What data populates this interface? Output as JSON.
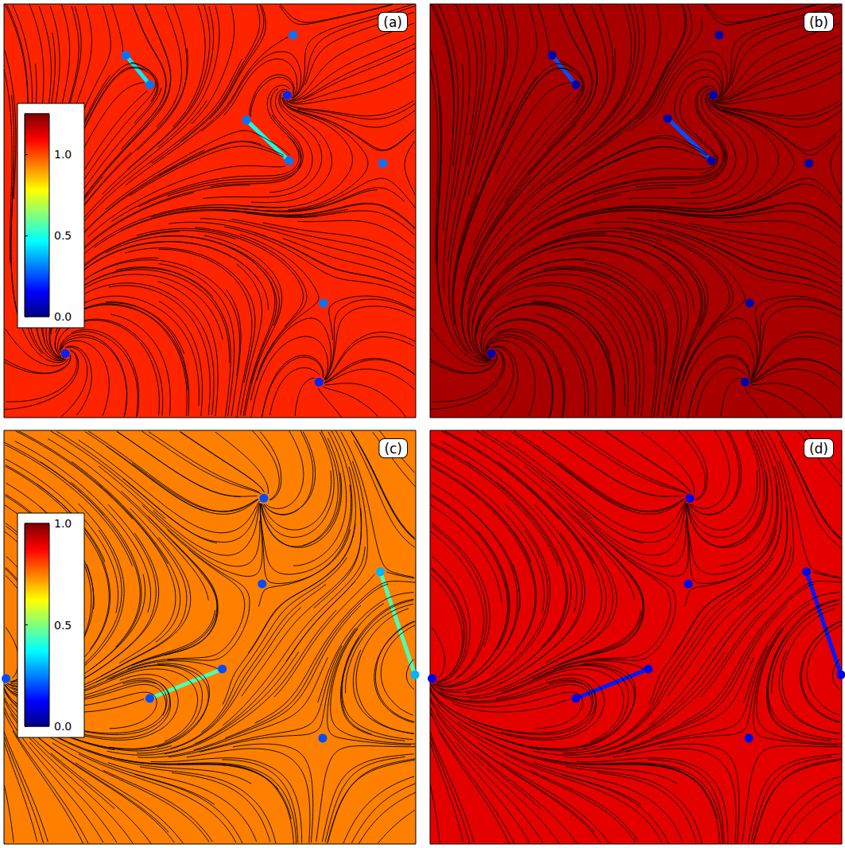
{
  "chart_data": {
    "type": "field",
    "tick_labels": false,
    "xlim": [
      0,
      100
    ],
    "ylim": [
      0,
      100
    ],
    "rows": [
      {
        "colorbar": {
          "range": [
            0,
            1.25
          ],
          "ticks": [
            {
              "value": 0,
              "label": "0.0"
            },
            {
              "value": 0.5,
              "label": "0.5"
            },
            {
              "value": 1,
              "label": "1.0"
            }
          ]
        },
        "panels": [
          {
            "label": "(a)",
            "marker": "none",
            "background": 1.05,
            "walls": [
              {
                "from": [
                  29.6,
                  87.6
                ],
                "to": [
                  35.4,
                  80.5
                ],
                "value": 0.45
              },
              {
                "from": [
                  58.9,
                  71.9
                ],
                "to": [
                  69.2,
                  62.1
                ],
                "value": 0.5
              }
            ],
            "defects": [
              {
                "x": 29.6,
                "y": 87.6,
                "charge": -0.5,
                "value": 0.3
              },
              {
                "x": 35.4,
                "y": 80.5,
                "charge": 0.5,
                "value": 0.3
              },
              {
                "x": 58.9,
                "y": 71.9,
                "charge": -0.5,
                "value": 0.3
              },
              {
                "x": 69.2,
                "y": 62.1,
                "charge": 0.5,
                "value": 0.3
              },
              {
                "x": 70.2,
                "y": 92.5,
                "charge": -1,
                "value": 0.3
              },
              {
                "x": 68.8,
                "y": 78.0,
                "charge": 1,
                "value": 0.2
              },
              {
                "x": 92.0,
                "y": 61.5,
                "charge": -1,
                "value": 0.3
              },
              {
                "x": 77.6,
                "y": 27.7,
                "charge": -1,
                "value": 0.3
              },
              {
                "x": 14.9,
                "y": 15.5,
                "charge": 1,
                "value": 0.2
              },
              {
                "x": 76.5,
                "y": 8.6,
                "charge": 1,
                "value": 0.2
              }
            ]
          },
          {
            "label": "(b)",
            "marker": "arrow",
            "background": 1.2,
            "walls": [
              {
                "from": [
                  29.6,
                  87.6
                ],
                "to": [
                  35.4,
                  80.5
                ],
                "value": 0.25
              },
              {
                "from": [
                  57.7,
                  72.3
                ],
                "to": [
                  68.3,
                  62.1
                ],
                "value": 0.25
              }
            ],
            "defects": [
              {
                "x": 29.6,
                "y": 87.6,
                "charge": -0.5,
                "value": 0.05
              },
              {
                "x": 35.4,
                "y": 80.5,
                "charge": 0.5,
                "value": 0.05
              },
              {
                "x": 57.7,
                "y": 72.3,
                "charge": -0.5,
                "value": 0.05
              },
              {
                "x": 68.3,
                "y": 62.1,
                "charge": 0.5,
                "value": 0.05
              },
              {
                "x": 70.2,
                "y": 92.5,
                "charge": -1,
                "value": 0.05
              },
              {
                "x": 68.8,
                "y": 78.0,
                "charge": 1,
                "value": 0.05
              },
              {
                "x": 92.0,
                "y": 61.5,
                "charge": -1,
                "value": 0.05
              },
              {
                "x": 77.6,
                "y": 27.7,
                "charge": -1,
                "value": 0.05
              },
              {
                "x": 14.9,
                "y": 15.5,
                "charge": 1,
                "value": 0.05
              },
              {
                "x": 76.5,
                "y": 8.6,
                "charge": 1,
                "value": 0.05
              }
            ]
          }
        ]
      },
      {
        "colorbar": {
          "range": [
            0,
            1
          ],
          "ticks": [
            {
              "value": 0,
              "label": "0.0"
            },
            {
              "value": 0.5,
              "label": "0.5"
            },
            {
              "value": 1,
              "label": "1.0"
            }
          ]
        },
        "panels": [
          {
            "label": "(c)",
            "marker": "none",
            "background": 0.75,
            "walls": [
              {
                "from": [
                  91.4,
                  65.8
                ],
                "to": [
                  99.8,
                  40.9
                ],
                "value": 0.45
              },
              {
                "from": [
                  35.4,
                  35.2
                ],
                "to": [
                  53.0,
                  42.3
                ],
                "value": 0.45
              }
            ],
            "defects": [
              {
                "x": 63.1,
                "y": 83.6,
                "charge": 1,
                "value": 0.2
              },
              {
                "x": 62.7,
                "y": 62.9,
                "charge": -1,
                "value": 0.2
              },
              {
                "x": 91.4,
                "y": 65.8,
                "charge": -0.5,
                "value": 0.3
              },
              {
                "x": 99.8,
                "y": 40.9,
                "charge": 0.5,
                "value": 0.3
              },
              {
                "x": 35.4,
                "y": 35.2,
                "charge": 0.5,
                "value": 0.2
              },
              {
                "x": 53.0,
                "y": 42.3,
                "charge": -0.5,
                "value": 0.2
              },
              {
                "x": 77.4,
                "y": 25.6,
                "charge": -1,
                "value": 0.2
              },
              {
                "x": 0.5,
                "y": 40.0,
                "charge": 1,
                "value": 0.2
              }
            ]
          },
          {
            "label": "(d)",
            "marker": "arrow",
            "background": 0.9,
            "walls": [
              {
                "from": [
                  91.4,
                  65.8
                ],
                "to": [
                  99.8,
                  40.9
                ],
                "value": 0.15
              },
              {
                "from": [
                  35.4,
                  35.2
                ],
                "to": [
                  53.0,
                  42.3
                ],
                "value": 0.15
              }
            ],
            "defects": [
              {
                "x": 63.1,
                "y": 83.6,
                "charge": 1,
                "value": 0.1
              },
              {
                "x": 62.7,
                "y": 62.9,
                "charge": -1,
                "value": 0.1
              },
              {
                "x": 91.4,
                "y": 65.8,
                "charge": -0.5,
                "value": 0.1
              },
              {
                "x": 99.8,
                "y": 40.9,
                "charge": 0.5,
                "value": 0.1
              },
              {
                "x": 35.4,
                "y": 35.2,
                "charge": 0.5,
                "value": 0.1
              },
              {
                "x": 53.0,
                "y": 42.3,
                "charge": -0.5,
                "value": 0.1
              },
              {
                "x": 77.4,
                "y": 25.6,
                "charge": -1,
                "value": 0.1
              },
              {
                "x": 0.5,
                "y": 40.0,
                "charge": 1,
                "value": 0.1
              }
            ]
          }
        ]
      }
    ]
  }
}
